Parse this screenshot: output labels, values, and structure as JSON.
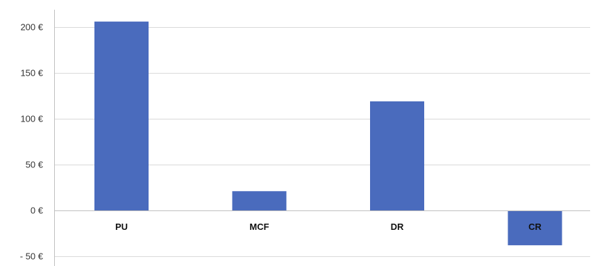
{
  "chart_data": {
    "type": "bar",
    "title": "",
    "xlabel": "",
    "ylabel": "",
    "categories": [
      "PU",
      "MCF",
      "DR",
      "CR"
    ],
    "values": [
      206,
      21,
      119,
      -38
    ],
    "ylim": [
      -50,
      200
    ],
    "yticks": [
      {
        "value": 200,
        "label": "200 €"
      },
      {
        "value": 150,
        "label": "150 €"
      },
      {
        "value": 100,
        "label": "100 €"
      },
      {
        "value": 50,
        "label": "50 €"
      },
      {
        "value": 0,
        "label": "0 €"
      },
      {
        "value": -50,
        "label": "- 50 €"
      }
    ],
    "grid": true,
    "legend": "none",
    "bar_color": "#4a6bbd"
  }
}
